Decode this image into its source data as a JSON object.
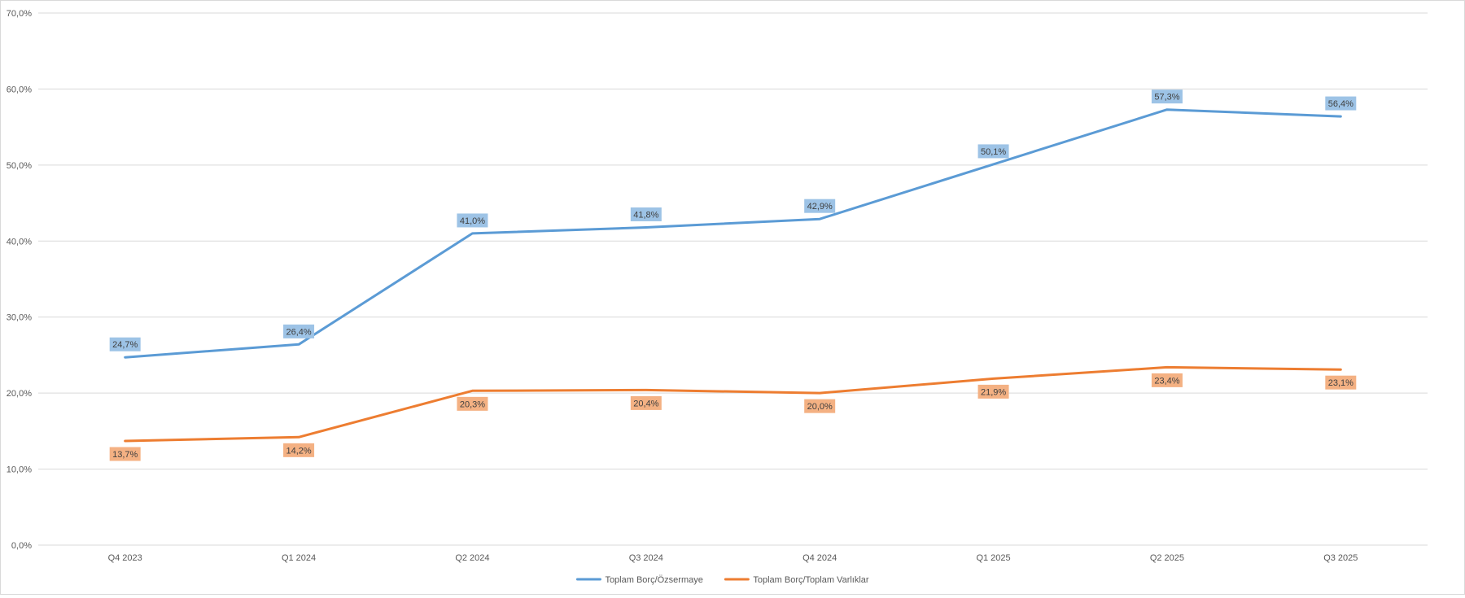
{
  "chart_data": {
    "type": "line",
    "categories": [
      "Q4 2023",
      "Q1 2024",
      "Q2 2024",
      "Q3 2024",
      "Q4 2024",
      "Q1 2025",
      "Q2 2025",
      "Q3 2025"
    ],
    "ylim": [
      0,
      70
    ],
    "yticks": [
      0,
      10,
      20,
      30,
      40,
      50,
      60,
      70
    ],
    "ytick_labels": [
      "0,0%",
      "10,0%",
      "20,0%",
      "30,0%",
      "40,0%",
      "50,0%",
      "60,0%",
      "70,0%"
    ],
    "grid": true,
    "legend_position": "bottom",
    "series": [
      {
        "name": "Toplam Borç/Özsermaye",
        "color": "#5b9bd5",
        "label_bg": "#9dc3e6",
        "label_position": "above",
        "values": [
          24.7,
          26.4,
          41.0,
          41.8,
          42.9,
          50.1,
          57.3,
          56.4
        ],
        "labels": [
          "24,7%",
          "26,4%",
          "41,0%",
          "41,8%",
          "42,9%",
          "50,1%",
          "57,3%",
          "56,4%"
        ]
      },
      {
        "name": "Toplam Borç/Toplam Varlıklar",
        "color": "#ed7d31",
        "label_bg": "#f4b183",
        "label_position": "below",
        "values": [
          13.7,
          14.2,
          20.3,
          20.4,
          20.0,
          21.9,
          23.4,
          23.1
        ],
        "labels": [
          "13,7%",
          "14,2%",
          "20,3%",
          "20,4%",
          "20,0%",
          "21,9%",
          "23,4%",
          "23,1%"
        ]
      }
    ]
  }
}
